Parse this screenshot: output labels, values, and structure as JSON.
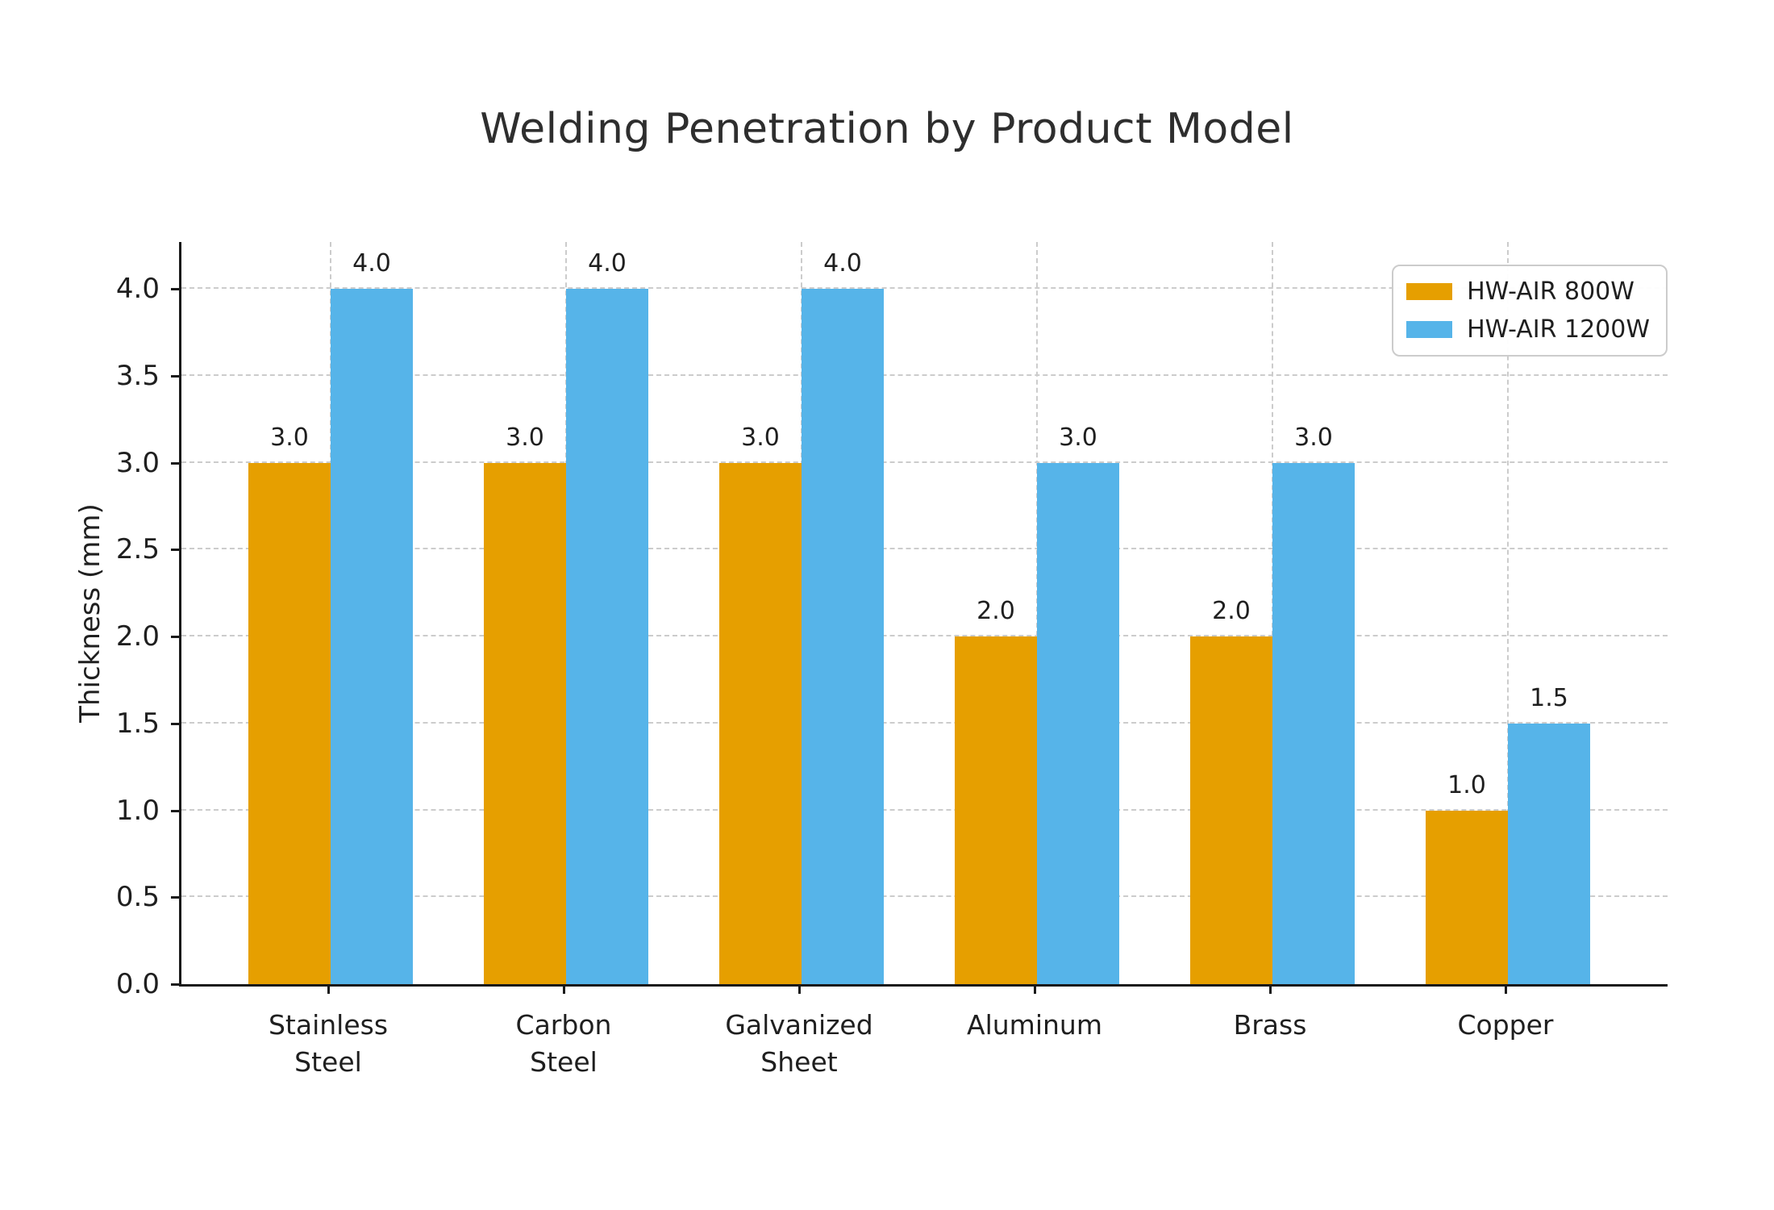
{
  "chart_data": {
    "type": "bar",
    "title": "Welding Penetration by Product Model",
    "ylabel": "Thickness (mm)",
    "xlabel": "",
    "categories": [
      "Stainless\nSteel",
      "Carbon\nSteel",
      "Galvanized\nSheet",
      "Aluminum",
      "Brass",
      "Copper"
    ],
    "series": [
      {
        "name": "HW-AIR 800W",
        "color": "#E69F00",
        "values": [
          3.0,
          3.0,
          3.0,
          2.0,
          2.0,
          1.0
        ]
      },
      {
        "name": "HW-AIR 1200W",
        "color": "#56B4E9",
        "values": [
          4.0,
          4.0,
          4.0,
          3.0,
          3.0,
          1.5
        ]
      }
    ],
    "yticks": [
      0.0,
      0.5,
      1.0,
      1.5,
      2.0,
      2.5,
      3.0,
      3.5,
      4.0
    ],
    "ylim": [
      0,
      4.27
    ],
    "grid": true,
    "grid_style": "dashed",
    "legend_position": "upper right",
    "bar_value_labels": true,
    "colors": {
      "axis": "#1a1a1a",
      "grid": "#cccccc",
      "text": "#1f1f1f",
      "legend_border": "#cccccc"
    }
  }
}
